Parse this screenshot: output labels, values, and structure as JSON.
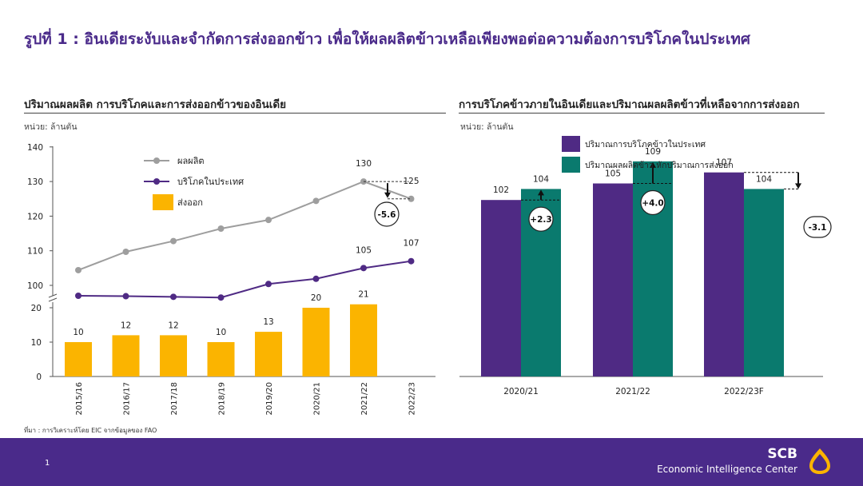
{
  "page": {
    "title": "รูปที่ 1 : อินเดียระงับและจำกัดการส่งออกข้าว เพื่อให้ผลผลิตข้าวเหลือเพียงพอต่อความต้องการบริโภคในประเทศ",
    "source": "ที่มา : การวิเคราะห์โดย EIC จากข้อมูลของ FAO",
    "page_number": "1",
    "brand": {
      "name": "SCB",
      "subtitle": "Economic Intelligence Center"
    },
    "colors": {
      "purple": "#4f2a84",
      "teal": "#0a7a6e",
      "orange": "#fbb400",
      "gray": "#9e9e9e",
      "footer": "#4a2a8a"
    }
  },
  "left": {
    "title": "ปริมาณผลผลิต การบริโภคและการส่งออกข้าวของอินเดีย",
    "unit": "หน่วย: ล้านตัน"
  },
  "right": {
    "title": "การบริโภคข้าวภายในอินเดียและปริมาณผลผลิตข้าวที่เหลือจากการส่งออก",
    "unit": "หน่วย: ล้านตัน"
  },
  "chart_data": [
    {
      "type": "line+bar (broken y-axis)",
      "title": "ปริมาณผลผลิต การบริโภคและการส่งออกข้าวของอินเดีย",
      "unit": "หน่วย: ล้านตัน",
      "categories": [
        "2015/16",
        "2016/17",
        "2017/18",
        "2018/19",
        "2019/20",
        "2020/21",
        "2021/22",
        "2022/23"
      ],
      "upper_axis": {
        "ylim": [
          100,
          140
        ],
        "ticks": [
          100,
          110,
          120,
          130,
          140
        ]
      },
      "lower_axis": {
        "ylim": [
          0,
          20
        ],
        "ticks": [
          0,
          10,
          20
        ]
      },
      "series": [
        {
          "name": "ผลผลิต",
          "kind": "line",
          "color": "#9e9e9e",
          "values": [
            104.4,
            109.7,
            112.8,
            116.4,
            118.9,
            124.4,
            130,
            125
          ]
        },
        {
          "name": "บริโภคในประเทศ",
          "kind": "line",
          "color": "#4f2a84",
          "values": [
            96.2,
            96.7,
            97.4,
            98.2,
            100.4,
            101.9,
            105,
            107
          ]
        },
        {
          "name": "ส่งออก",
          "kind": "bar",
          "color": "#fbb400",
          "values": [
            10,
            12,
            12,
            10,
            13,
            20,
            21,
            null
          ]
        }
      ],
      "point_labels": [
        {
          "series": "ผลผลิต",
          "category": "2021/22",
          "text": "130"
        },
        {
          "series": "ผลผลิต",
          "category": "2022/23",
          "text": "125"
        },
        {
          "series": "บริโภคในประเทศ",
          "category": "2021/22",
          "text": "105"
        },
        {
          "series": "บริโภคในประเทศ",
          "category": "2022/23",
          "text": "107"
        }
      ],
      "bar_labels": [
        "10",
        "12",
        "12",
        "10",
        "13",
        "20",
        "21"
      ],
      "annotation": "-5.6",
      "legend": "top-left",
      "grid": false
    },
    {
      "type": "bar",
      "title": "การบริโภคข้าวภายในอินเดียและปริมาณผลผลิตข้าวที่เหลือจากการส่งออก",
      "unit": "หน่วย: ล้านตัน",
      "categories": [
        "2020/21",
        "2021/22",
        "2022/23F"
      ],
      "series": [
        {
          "name": "ปริมาณการบริโภคข้าวในประเทศ",
          "color": "#4f2a84",
          "values": [
            102,
            105,
            107
          ]
        },
        {
          "name": "ปริมาณผลผลิตข้าว หักปริมาณการส่งออก",
          "color": "#0a7a6e",
          "values": [
            104,
            109,
            104
          ]
        }
      ],
      "annotations": [
        "+2.3",
        "+4.0",
        "-3.1"
      ],
      "ylim": [
        70,
        112
      ],
      "legend": "top-left",
      "grid": false
    }
  ]
}
